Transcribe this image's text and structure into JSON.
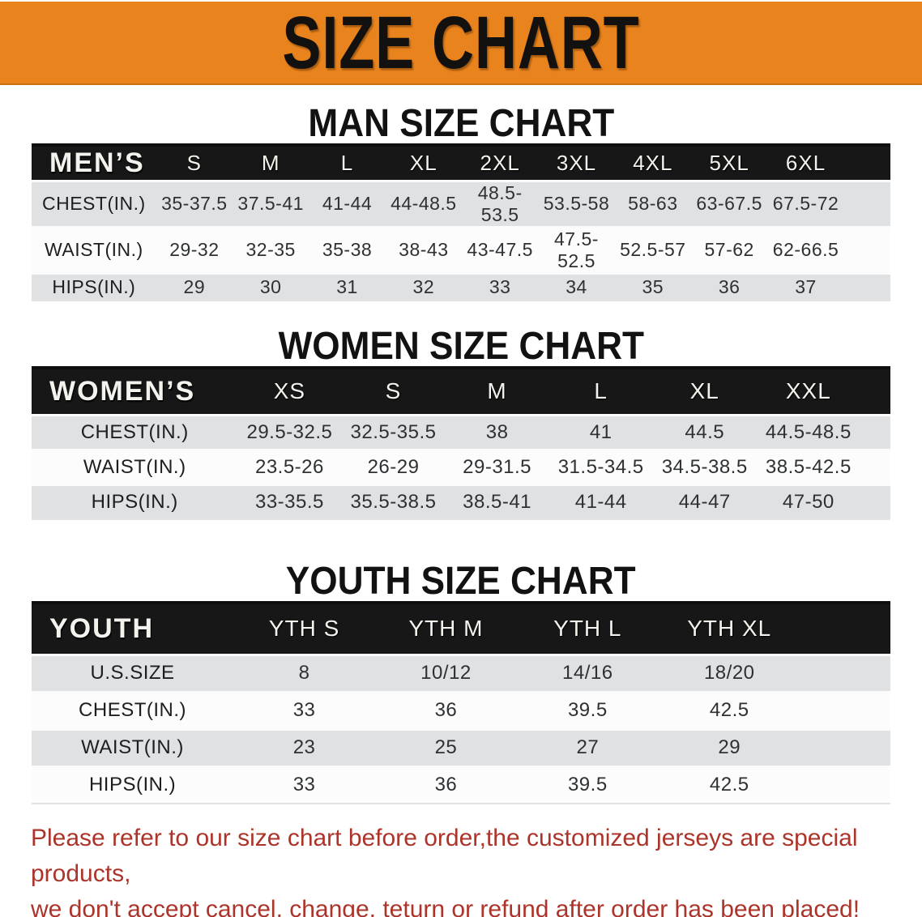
{
  "banner": {
    "title": "SIZE CHART"
  },
  "sections": [
    {
      "title": "MAN SIZE CHART",
      "corner_label": "MEN’S",
      "columns": [
        "S",
        "M",
        "L",
        "XL",
        "2XL",
        "3XL",
        "4XL",
        "5XL",
        "6XL"
      ],
      "rows": [
        {
          "label": "CHEST(IN.)",
          "values": [
            "35-37.5",
            "37.5-41",
            "41-44",
            "44-48.5",
            "48.5-53.5",
            "53.5-58",
            "58-63",
            "63-67.5",
            "67.5-72"
          ]
        },
        {
          "label": "WAIST(IN.)",
          "values": [
            "29-32",
            "32-35",
            "35-38",
            "38-43",
            "43-47.5",
            "47.5-52.5",
            "52.5-57",
            "57-62",
            "62-66.5"
          ]
        },
        {
          "label": "HIPS(IN.)",
          "values": [
            "29",
            "30",
            "31",
            "32",
            "33",
            "34",
            "35",
            "36",
            "37"
          ]
        }
      ]
    },
    {
      "title": "WOMEN SIZE CHART",
      "corner_label": "WOMEN’S",
      "columns": [
        "XS",
        "S",
        "M",
        "L",
        "XL",
        "XXL"
      ],
      "rows": [
        {
          "label": "CHEST(IN.)",
          "values": [
            "29.5-32.5",
            "32.5-35.5",
            "38",
            "41",
            "44.5",
            "44.5-48.5"
          ]
        },
        {
          "label": "WAIST(IN.)",
          "values": [
            "23.5-26",
            "26-29",
            "29-31.5",
            "31.5-34.5",
            "34.5-38.5",
            "38.5-42.5"
          ]
        },
        {
          "label": "HIPS(IN.)",
          "values": [
            "33-35.5",
            "35.5-38.5",
            "38.5-41",
            "41-44",
            "44-47",
            "47-50"
          ]
        }
      ]
    },
    {
      "title": "YOUTH SIZE CHART",
      "corner_label": "YOUTH",
      "columns": [
        "YTH S",
        "YTH M",
        "YTH L",
        "YTH XL"
      ],
      "rows": [
        {
          "label": "U.S.SIZE",
          "values": [
            "8",
            "10/12",
            "14/16",
            "18/20"
          ]
        },
        {
          "label": "CHEST(IN.)",
          "values": [
            "33",
            "36",
            "39.5",
            "42.5"
          ]
        },
        {
          "label": "WAIST(IN.)",
          "values": [
            "23",
            "25",
            "27",
            "29"
          ]
        },
        {
          "label": "HIPS(IN.)",
          "values": [
            "33",
            "36",
            "39.5",
            "42.5"
          ]
        }
      ]
    }
  ],
  "footer": {
    "line1": "Please refer to our size chart before order,the customized jerseys are special products,",
    "line2": "we don't accept cancel, change, teturn or refund after order has been placed!",
    "text_color": "#AC342A"
  },
  "colors": {
    "banner_bg": "#E8831D",
    "header_bg": "#171717",
    "row_alt_bg": "#DFE1E2",
    "row_bg": "#FCFCFC"
  }
}
